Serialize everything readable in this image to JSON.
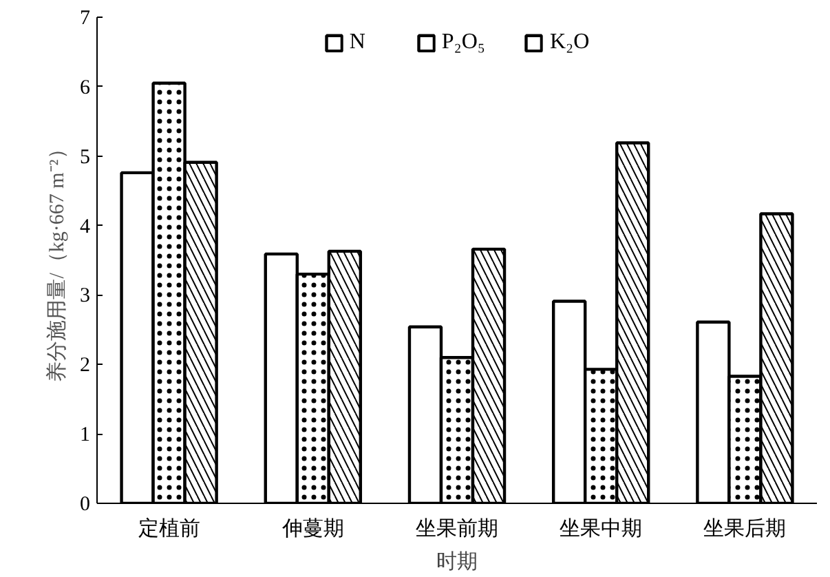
{
  "chart_data": {
    "type": "bar",
    "xlabel": "时期",
    "ylabel": "养分施用量/（kg·667 m⁻²）",
    "categories": [
      "定植前",
      "伸蔓期",
      "坐果前期",
      "坐果中期",
      "坐果后期"
    ],
    "series": [
      {
        "name": "N",
        "color": "#ffffff",
        "values": [
          4.76,
          3.59,
          2.54,
          2.91,
          2.61
        ]
      },
      {
        "name": "P₂O₅",
        "color": "#ffffff",
        "values": [
          6.05,
          3.3,
          2.1,
          1.93,
          1.83
        ]
      },
      {
        "name": "K₂O",
        "color": "#ffffff",
        "values": [
          4.91,
          3.63,
          3.66,
          5.19,
          4.17
        ]
      }
    ],
    "ylim": [
      0,
      7
    ],
    "yticks": [
      0,
      1,
      2,
      3,
      4,
      5,
      6,
      7
    ],
    "grid": false,
    "legend": "top"
  }
}
